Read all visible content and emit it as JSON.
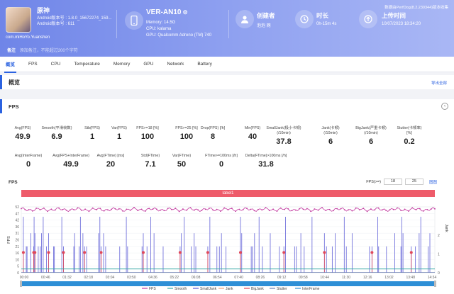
{
  "app": {
    "name": "原神",
    "android_version": "Android版本号 : 1.8.0_15672274_159...",
    "android_build": "Android版本号 : 611",
    "package": "com.miHoYo.Yuanshen"
  },
  "device": {
    "name": "VER-AN10",
    "memory": "Memory: 14.5G",
    "cpu": "CPU: kalama",
    "gpu": "GPU: Qualcomm Adreno (TM) 740"
  },
  "stats": [
    {
      "label": "创建者",
      "value": "泡泡 网",
      "icon": "user-icon"
    },
    {
      "label": "时长",
      "value": "0h-15m 4s",
      "icon": "clock-icon"
    },
    {
      "label": "上传时间",
      "value": "10/07/2023 18:34:20",
      "icon": "upload-icon"
    }
  ],
  "note": {
    "key": "备注",
    "placeholder": "添加备注，不能超过200个字符"
  },
  "version_text": "数据由PerfDog(8.2.230344)版本收集",
  "tabs": [
    "概览",
    "FPS",
    "CPU",
    "Temperature",
    "Memory",
    "GPU",
    "Network",
    "Battery"
  ],
  "overview": {
    "title": "概览",
    "export": "导出全部"
  },
  "fps_panel": {
    "title": "FPS",
    "metrics_row1": [
      {
        "label": "Avg(FPS)",
        "value": "49.9"
      },
      {
        "label": "Smooth(平滑帧数)",
        "value": "6.9"
      },
      {
        "label": "Stb(FPS)",
        "value": "1"
      },
      {
        "label": "Var(FPS)",
        "value": "1"
      },
      {
        "label": "FPS>=18 [%]",
        "value": "100"
      },
      {
        "label": "FPS>=25 [%]",
        "value": "100"
      },
      {
        "label": "Drop(FPS) [/h]",
        "value": "8"
      },
      {
        "label": "Min(FPS)",
        "value": "40"
      },
      {
        "label": "SmallJank(极小卡顿)\n(/10min)",
        "value": "37.8"
      },
      {
        "label": "Jank(卡顿)\n(/10min)",
        "value": "6"
      },
      {
        "label": "BigJank(严重卡顿)\n(/10min)",
        "value": "6"
      },
      {
        "label": "Stutter(卡顿率)\n[%]",
        "value": "0.2"
      }
    ],
    "metrics_row2": [
      {
        "label": "Avg(InterFrame)",
        "value": "0"
      },
      {
        "label": "Avg(FPS+InterFrame)",
        "value": "49.9"
      },
      {
        "label": "Avg(FTime) [ms]",
        "value": "20"
      },
      {
        "label": "Std(FTime)",
        "value": "7.1"
      },
      {
        "label": "Var(FTime)",
        "value": "50"
      },
      {
        "label": "FTime>=100ms [/h]",
        "value": "0"
      },
      {
        "label": "Delta(FTime)>100ms [/h]",
        "value": "31.8"
      }
    ],
    "chart_title": "FPS",
    "ctrl_label": "FPS(>=)",
    "ctrl_a": "18",
    "ctrl_b": "25",
    "ctrl_link": "图图",
    "label_bar": "label1"
  },
  "chart_data": {
    "type": "line",
    "title": "FPS",
    "ylabel_left": "FPS",
    "ylabel_right": "Jank",
    "y_ticks": [
      "52",
      "47",
      "42",
      "36",
      "31",
      "26",
      "21",
      "16",
      "10",
      "5",
      "0"
    ],
    "right_ticks": [
      "2",
      "1",
      "0"
    ],
    "x_ticks": [
      "00:00",
      "00:46",
      "01:32",
      "02:18",
      "03:04",
      "03:50",
      "04:36",
      "05:22",
      "06:08",
      "06:54",
      "07:40",
      "08:26",
      "09:12",
      "09:58",
      "10:44",
      "11:30",
      "12:16",
      "13:02",
      "13:48",
      "14:34"
    ],
    "ylim": [
      0,
      52
    ],
    "fps_level": 49.9,
    "smooth_level": 3,
    "stutter_level": 0.3,
    "jank_spikes": [
      0.5,
      1.2,
      1.4,
      2.3,
      3.0,
      3.1,
      3.3,
      4.1,
      4.6,
      4.9,
      5.3,
      6.1,
      6.6,
      7.8,
      8.0,
      9.8,
      10.2,
      12.7,
      12.9,
      14.0,
      14.3,
      14.9,
      15.3,
      15.8,
      18.7,
      19.0,
      19.3,
      19.9,
      20.4,
      23.8,
      25.4,
      25.7,
      29.2,
      29.5,
      30.4,
      31.3,
      32.1,
      34.3,
      38.4,
      38.7,
      39.4,
      41.1,
      41.8,
      42.2,
      45.1,
      45.6,
      47.3,
      47.9,
      48.4,
      49.5,
      53.0,
      53.3,
      55.6,
      55.9,
      56.4,
      57.5,
      58.3,
      60.2,
      62.4,
      63.5,
      63.9,
      66.1,
      66.5,
      67.6,
      68.4,
      70.3,
      73.3,
      73.8,
      75.2,
      75.9,
      78.1,
      78.6,
      80.0,
      84.2,
      84.8,
      86.2,
      86.4,
      88.3,
      90.3,
      91.8,
      92.0,
      92.3,
      94.3,
      95.3,
      96.2,
      96.6,
      98.4,
      98.8
    ],
    "bigjank_markers": [
      0.5,
      3.0,
      3.3,
      6.6,
      10.2,
      15.3,
      19.3,
      29.5,
      38.4,
      45.1,
      53.0,
      63.5,
      73.3,
      84.8,
      94.3
    ],
    "legend": [
      "FPS",
      "Smooth",
      "SmallJank",
      "Jank",
      "BigJank",
      "Stutter",
      "InterFrame"
    ],
    "legend_colors": [
      "#c23ba0",
      "#3aa9a6",
      "#5b5bd6",
      "#f0a47a",
      "#e0485a",
      "#6f82b3",
      "#2e8fd6"
    ]
  }
}
